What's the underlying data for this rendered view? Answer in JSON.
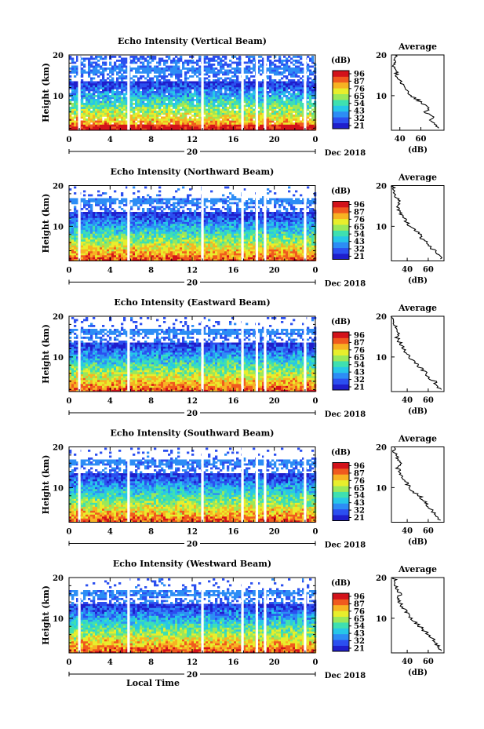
{
  "figure": {
    "x_axis_label": "Local Time",
    "date_label": "Dec 2018",
    "day_label": "20",
    "avg_title": "Average",
    "avg_unit": "(dB)",
    "cb_unit": "(dB)",
    "y_label": "Height (km)"
  },
  "colorbar_ticks": [
    "96",
    "87",
    "76",
    "65",
    "54",
    "43",
    "32",
    "21"
  ],
  "colorscale": [
    "#1f1ecc",
    "#2b4ff0",
    "#2d8df5",
    "#27c7e8",
    "#3fe0b0",
    "#9be85a",
    "#e8ee2c",
    "#f7b323",
    "#f05a1e",
    "#d3121a"
  ],
  "gap_hours": [
    1.0,
    5.8,
    13.0,
    16.9,
    18.3,
    19.1,
    23.0
  ],
  "chart_data": [
    {
      "type": "heatmap",
      "title": "Echo Intensity (Vertical Beam)",
      "xlabel": "",
      "ylabel": "Height (km)",
      "xlim": [
        0,
        24
      ],
      "ylim": [
        1.5,
        20
      ],
      "x_ticks": [
        "0",
        "4",
        "8",
        "12",
        "16",
        "20",
        "0"
      ],
      "y_ticks": [
        "20",
        "10"
      ],
      "color_range_db": [
        21,
        96
      ],
      "avg": {
        "title": "Average",
        "xlabel": "(dB)",
        "xlim": [
          32,
          82
        ],
        "x_ticks": [
          "40",
          "60"
        ],
        "heights": [
          2,
          3,
          4,
          5,
          6,
          7,
          8,
          9,
          10,
          11,
          12,
          13,
          14,
          15,
          16,
          17,
          18,
          19,
          20
        ],
        "values": [
          78,
          74,
          70,
          72,
          64,
          68,
          61,
          57,
          50,
          48,
          46,
          42,
          40,
          36,
          38,
          35,
          34,
          36,
          36
        ]
      }
    },
    {
      "type": "heatmap",
      "title": "Echo Intensity (Northward Beam)",
      "xlabel": "",
      "ylabel": "Height (km)",
      "xlim": [
        0,
        24
      ],
      "ylim": [
        1.5,
        20
      ],
      "x_ticks": [
        "0",
        "4",
        "8",
        "12",
        "16",
        "20",
        "0"
      ],
      "y_ticks": [
        "20",
        "10"
      ],
      "color_range_db": [
        21,
        96
      ],
      "avg": {
        "title": "Average",
        "xlabel": "(dB)",
        "xlim": [
          25,
          75
        ],
        "x_ticks": [
          "40",
          "60"
        ],
        "heights": [
          2,
          3,
          4,
          5,
          6,
          7,
          8,
          9,
          10,
          11,
          12,
          13,
          14,
          15,
          16,
          17,
          18,
          19,
          20
        ],
        "values": [
          72,
          70,
          66,
          62,
          60,
          54,
          52,
          48,
          42,
          40,
          37,
          34,
          32,
          30,
          33,
          30,
          28,
          27,
          27
        ]
      }
    },
    {
      "type": "heatmap",
      "title": "Echo Intensity (Eastward Beam)",
      "xlabel": "",
      "ylabel": "Height (km)",
      "xlim": [
        0,
        24
      ],
      "ylim": [
        1.5,
        20
      ],
      "x_ticks": [
        "0",
        "4",
        "8",
        "12",
        "16",
        "20",
        "0"
      ],
      "y_ticks": [
        "20",
        "10"
      ],
      "color_range_db": [
        21,
        96
      ],
      "avg": {
        "title": "Average",
        "xlabel": "(dB)",
        "xlim": [
          25,
          75
        ],
        "x_ticks": [
          "40",
          "60"
        ],
        "heights": [
          2,
          3,
          4,
          5,
          6,
          7,
          8,
          9,
          10,
          11,
          12,
          13,
          14,
          15,
          16,
          17,
          18,
          19,
          20
        ],
        "values": [
          72,
          68,
          66,
          60,
          58,
          54,
          50,
          46,
          42,
          39,
          36,
          34,
          32,
          30,
          33,
          30,
          28,
          27,
          26
        ]
      }
    },
    {
      "type": "heatmap",
      "title": "Echo Intensity (Southward Beam)",
      "xlabel": "",
      "ylabel": "Height (km)",
      "xlim": [
        0,
        24
      ],
      "ylim": [
        1.5,
        20
      ],
      "x_ticks": [
        "0",
        "4",
        "8",
        "12",
        "16",
        "20",
        "0"
      ],
      "y_ticks": [
        "20",
        "10"
      ],
      "color_range_db": [
        21,
        96
      ],
      "avg": {
        "title": "Average",
        "xlabel": "(dB)",
        "xlim": [
          25,
          75
        ],
        "x_ticks": [
          "40",
          "60"
        ],
        "heights": [
          2,
          3,
          4,
          5,
          6,
          7,
          8,
          9,
          10,
          11,
          12,
          13,
          14,
          15,
          16,
          17,
          18,
          19,
          20
        ],
        "values": [
          70,
          68,
          64,
          62,
          58,
          55,
          52,
          46,
          42,
          40,
          38,
          35,
          33,
          30,
          34,
          31,
          29,
          28,
          28
        ]
      }
    },
    {
      "type": "heatmap",
      "title": "Echo Intensity (Westward Beam)",
      "xlabel": "Local Time",
      "ylabel": "Height (km)",
      "xlim": [
        0,
        24
      ],
      "ylim": [
        1.5,
        20
      ],
      "x_ticks": [
        "0",
        "4",
        "8",
        "12",
        "16",
        "20",
        "0"
      ],
      "y_ticks": [
        "20",
        "10"
      ],
      "color_range_db": [
        21,
        96
      ],
      "avg": {
        "title": "Average",
        "xlabel": "(dB)",
        "xlim": [
          25,
          75
        ],
        "x_ticks": [
          "40",
          "60"
        ],
        "heights": [
          2,
          3,
          4,
          5,
          6,
          7,
          8,
          9,
          10,
          11,
          12,
          13,
          14,
          15,
          16,
          17,
          18,
          19,
          20
        ],
        "values": [
          72,
          70,
          66,
          64,
          60,
          56,
          52,
          48,
          44,
          40,
          38,
          35,
          33,
          31,
          34,
          31,
          28,
          28,
          28
        ]
      }
    }
  ]
}
